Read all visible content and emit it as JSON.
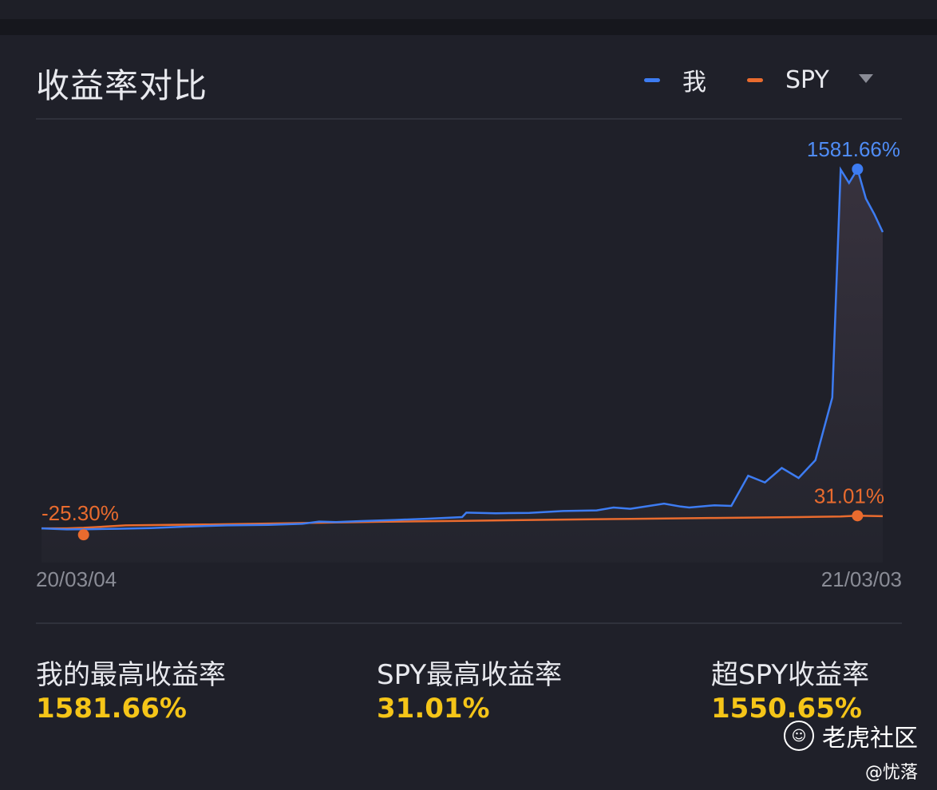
{
  "header": {
    "title": "收益率对比",
    "legend": [
      {
        "label": "我",
        "color": "#3d7cf2"
      },
      {
        "label": "SPY",
        "color": "#e96b2e"
      }
    ],
    "dropdown_icon": "caret-down-icon"
  },
  "chart_data": {
    "type": "line",
    "x_start_label": "20/03/04",
    "x_end_label": "21/03/03",
    "series": [
      {
        "name": "我",
        "color": "#3d7cf2",
        "x": [
          0,
          3,
          6,
          9,
          13,
          17,
          22,
          27,
          31,
          33,
          35,
          38,
          42,
          46,
          50,
          50.5,
          54,
          58,
          62,
          66,
          68,
          70,
          74,
          76,
          77,
          80,
          82,
          84,
          86,
          88,
          90,
          92,
          94,
          95,
          96,
          97,
          98,
          99,
          100
        ],
        "y": [
          -25.5,
          -30,
          -29,
          -27,
          -24,
          -18,
          -12,
          -10,
          -5,
          5,
          3,
          7,
          12,
          18,
          25,
          45,
          42,
          44,
          52,
          55,
          68,
          62,
          85,
          72,
          68,
          78,
          75,
          210,
          180,
          245,
          200,
          280,
          560,
          1580,
          1520,
          1581.66,
          1450,
          1380,
          1300
        ],
        "peak_label": "1581.66%"
      },
      {
        "name": "SPY",
        "color": "#e96b2e",
        "x": [
          0,
          3,
          5,
          10,
          20,
          30,
          40,
          50,
          60,
          70,
          80,
          90,
          95,
          97,
          100
        ],
        "y": [
          -25.3,
          -25.5,
          -23,
          -12,
          -8,
          -2,
          4,
          8,
          13,
          17,
          21,
          25,
          28,
          31.01,
          29
        ],
        "trough_label": "-25.30%",
        "peak_label": "31.01%"
      }
    ]
  },
  "stats": [
    {
      "label": "我的最高收益率",
      "value": "1581.66%"
    },
    {
      "label": "SPY最高收益率",
      "value": "31.01%"
    },
    {
      "label": "超SPY收益率",
      "value": "1550.65%"
    }
  ],
  "watermark": {
    "logo_icon": "tiger-logo-icon",
    "name": "老虎社区",
    "user": "@忧落"
  }
}
